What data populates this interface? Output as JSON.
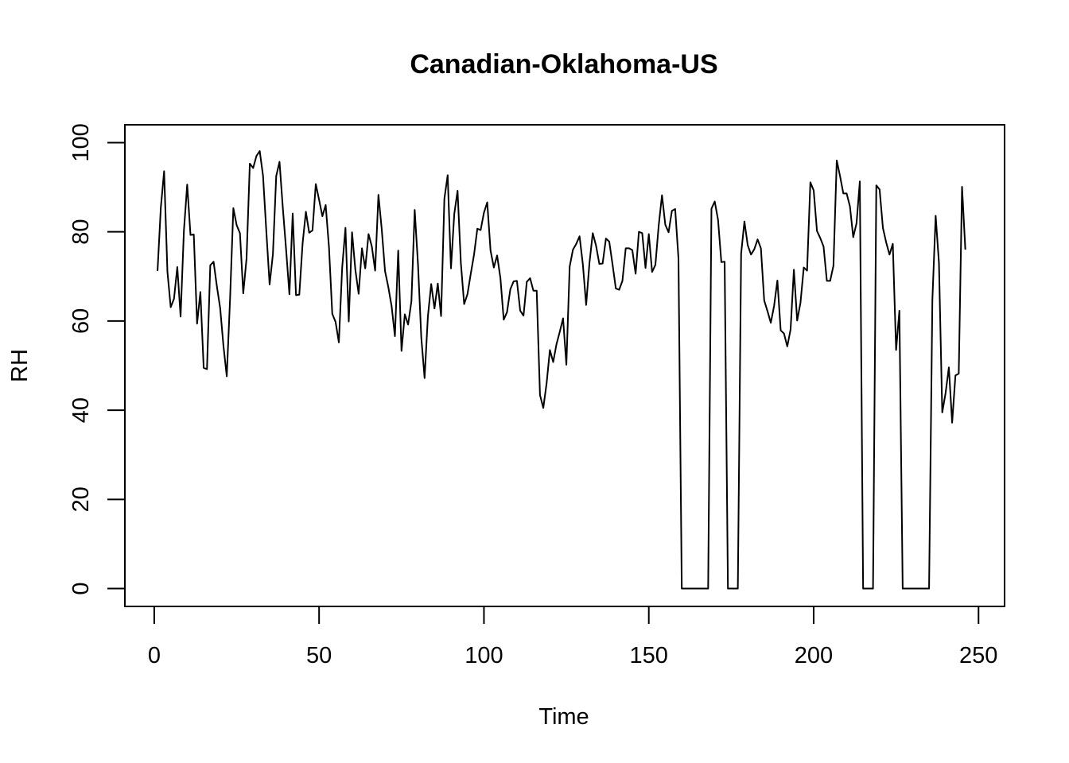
{
  "chart_data": {
    "type": "line",
    "title": "Canadian-Oklahoma-US",
    "xlabel": "Time",
    "ylabel": "RH",
    "xlim": [
      -8.9,
      257.9
    ],
    "ylim": [
      -4,
      104
    ],
    "x_ticks": [
      0,
      50,
      100,
      150,
      200,
      250
    ],
    "y_ticks": [
      0,
      20,
      40,
      60,
      80,
      100
    ],
    "grid": false,
    "line_color": "#000000",
    "x_start": 1,
    "series": [
      {
        "values": [
          71.2,
          85.4,
          93.6,
          71.1,
          63.1,
          65.0,
          72.1,
          61.0,
          80.2,
          90.6,
          79.3,
          79.4,
          59.4,
          66.5,
          49.5,
          49.2,
          72.5,
          73.3,
          67.8,
          62.9,
          54.4,
          47.6,
          64.9,
          85.3,
          81.5,
          79.7,
          66.2,
          74.0,
          95.3,
          94.3,
          97.0,
          98.1,
          92.6,
          80.1,
          68.2,
          75.0,
          92.5,
          95.7,
          85.4,
          76.0,
          66.0,
          84.1,
          65.8,
          65.9,
          77.4,
          84.5,
          79.8,
          80.3,
          90.7,
          87.2,
          83.5,
          86.0,
          76.6,
          61.6,
          59.8,
          55.2,
          71.9,
          80.9,
          59.9,
          79.9,
          71.5,
          66.1,
          76.3,
          71.8,
          79.5,
          76.7,
          71.3,
          88.3,
          80.6,
          71.2,
          67.6,
          63.3,
          56.6,
          75.8,
          53.3,
          61.5,
          59.2,
          64.4,
          84.9,
          72.7,
          56.3,
          47.2,
          61.0,
          68.3,
          62.8,
          68.4,
          61.1,
          87.4,
          92.7,
          71.8,
          84.0,
          89.2,
          73.0,
          63.8,
          66.0,
          70.6,
          74.9,
          80.7,
          80.4,
          84.3,
          86.6,
          75.8,
          72.0,
          74.7,
          69.6,
          60.3,
          62.0,
          67.1,
          68.9,
          69.0,
          62.3,
          61.2,
          68.8,
          69.6,
          66.8,
          66.8,
          43.4,
          40.5,
          46.0,
          53.5,
          50.8,
          54.8,
          57.6,
          60.6,
          50.2,
          72.2,
          76.0,
          77.3,
          79.0,
          72.7,
          63.6,
          73.0,
          79.7,
          76.9,
          72.8,
          72.9,
          78.5,
          77.8,
          72.7,
          67.3,
          67.0,
          69.0,
          76.3,
          76.3,
          75.9,
          70.6,
          80.0,
          79.7,
          71.9,
          79.5,
          71.0,
          72.6,
          81.4,
          88.2,
          81.6,
          79.9,
          84.7,
          85.1,
          74.0,
          0,
          0,
          0,
          0,
          0,
          0,
          0,
          0,
          0,
          85.2,
          86.8,
          82.7,
          73.2,
          73.3,
          0,
          0,
          0,
          0,
          75.1,
          82.3,
          77.0,
          74.9,
          76.1,
          78.3,
          76.3,
          64.6,
          62.2,
          59.6,
          63.4,
          69.1,
          57.9,
          57.2,
          54.3,
          58.1,
          71.5,
          60.1,
          64.1,
          72.0,
          71.3,
          91.1,
          89.3,
          80.2,
          78.6,
          76.7,
          69.0,
          69.0,
          72.4,
          96.0,
          92.5,
          88.6,
          88.6,
          85.7,
          78.8,
          81.9,
          91.3,
          0,
          0,
          0,
          0,
          90.4,
          89.5,
          80.9,
          77.6,
          74.9,
          77.3,
          53.5,
          62.3,
          0,
          0,
          0,
          0,
          0,
          0,
          0,
          0,
          0,
          64.7,
          83.6,
          73.0,
          39.5,
          43.8,
          49.6,
          37.2,
          47.8,
          48.2,
          90.1,
          76.0
        ]
      }
    ]
  }
}
